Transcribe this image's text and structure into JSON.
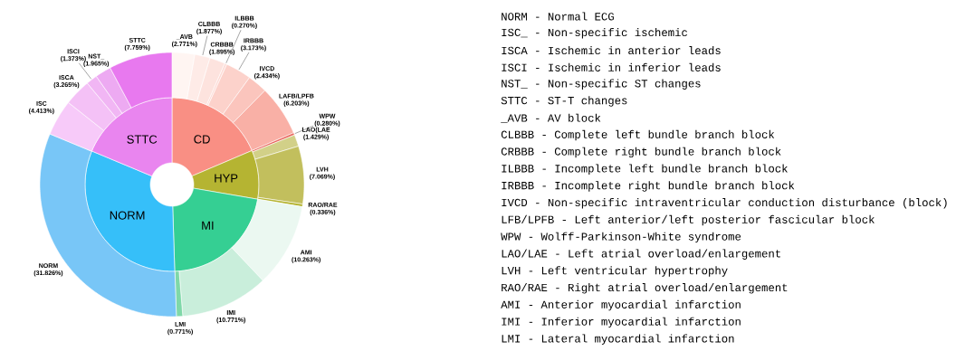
{
  "chart_data": [
    {
      "type": "donut",
      "categories": [
        "CD",
        "HYP",
        "MI",
        "NORM",
        "STTC"
      ],
      "values": [
        18.6,
        9.1,
        21.8,
        31.8,
        18.7
      ],
      "colors": [
        "#f98f84",
        "#b5b432",
        "#35cf93",
        "#36bff9",
        "#e985ef"
      ]
    },
    {
      "type": "donut",
      "categories": [
        "_AVB",
        "CLBBB",
        "CRBBB",
        "ILBBB",
        "IRBBB",
        "IVCD",
        "LAFB/LPFB",
        "WPW",
        "LAO(LAE",
        "LVH",
        "RAO/RAE",
        "AMI",
        "IMI",
        "LMI",
        "NORM",
        "ISC",
        "ISCA",
        "ISCI",
        "NST_",
        "STTC"
      ],
      "values": [
        2.771,
        1.877,
        1.895,
        0.27,
        3.173,
        2.434,
        6.203,
        0.28,
        1.429,
        7.069,
        0.336,
        10.263,
        10.771,
        0.771,
        31.826,
        4.413,
        3.265,
        1.373,
        1.965,
        7.759
      ],
      "value_labels": [
        "(2.771%)",
        "(1.877%)",
        "(1.895%)",
        "(0.270%)",
        "(3.173%)",
        "(2.434%)",
        "(6.203%)",
        "(0.280%)",
        "(1.429%)",
        "(7.069%)",
        "(0.336%)",
        "(10.263%)",
        "(10.771%)",
        "(0.771%)",
        "(31.826%)",
        "(4.413%)",
        "(3.265%)",
        "(1.373%)",
        "(1.965%)",
        "(7.759%)"
      ],
      "colors": [
        "#fff5f2",
        "#feebe7",
        "#fde3de",
        "#fddad4",
        "#fcd2cb",
        "#fbc5bd",
        "#f9b0a6",
        "#e8675e",
        "#d2d088",
        "#c2bf5d",
        "#b5b432",
        "#ebf8f1",
        "#c9eedb",
        "#7fd8a8",
        "#78c6f7",
        "#f7caf9",
        "#f4c1f6",
        "#f1b6f4",
        "#edaaf2",
        "#e879ef"
      ]
    },
    {
      "type": "other",
      "annotations": [
        "NORM - Normal ECG",
        "ISC_ - Non-specific ischemic",
        "ISCA - Ischemic in anterior leads",
        "ISCI - Ischemic in inferior leads",
        "NST_ - Non-specific ST changes",
        "STTC - ST-T changes",
        "_AVB - AV block",
        "CLBBB - Complete left bundle branch block",
        "CRBBB - Complete right bundle branch block",
        "ILBBB - Incomplete left bundle branch block",
        "IRBBB - Incomplete right bundle branch block",
        "IVCD - Non-specific intraventricular conduction disturbance (block)",
        "LFB/LPFB - Left anterior/left posterior fascicular block",
        "WPW - Wolff-Parkinson-White syndrome",
        "LAO/LAE - Left atrial overload/enlargement",
        "LVH - Left ventricular hypertrophy",
        "RAO/RAE - Right atrial overload/enlargement",
        "AMI - Anterior myocardial infarction",
        "IMI - Inferior myocardial infarction",
        "LMI - Lateral myocardial infarction"
      ]
    }
  ]
}
